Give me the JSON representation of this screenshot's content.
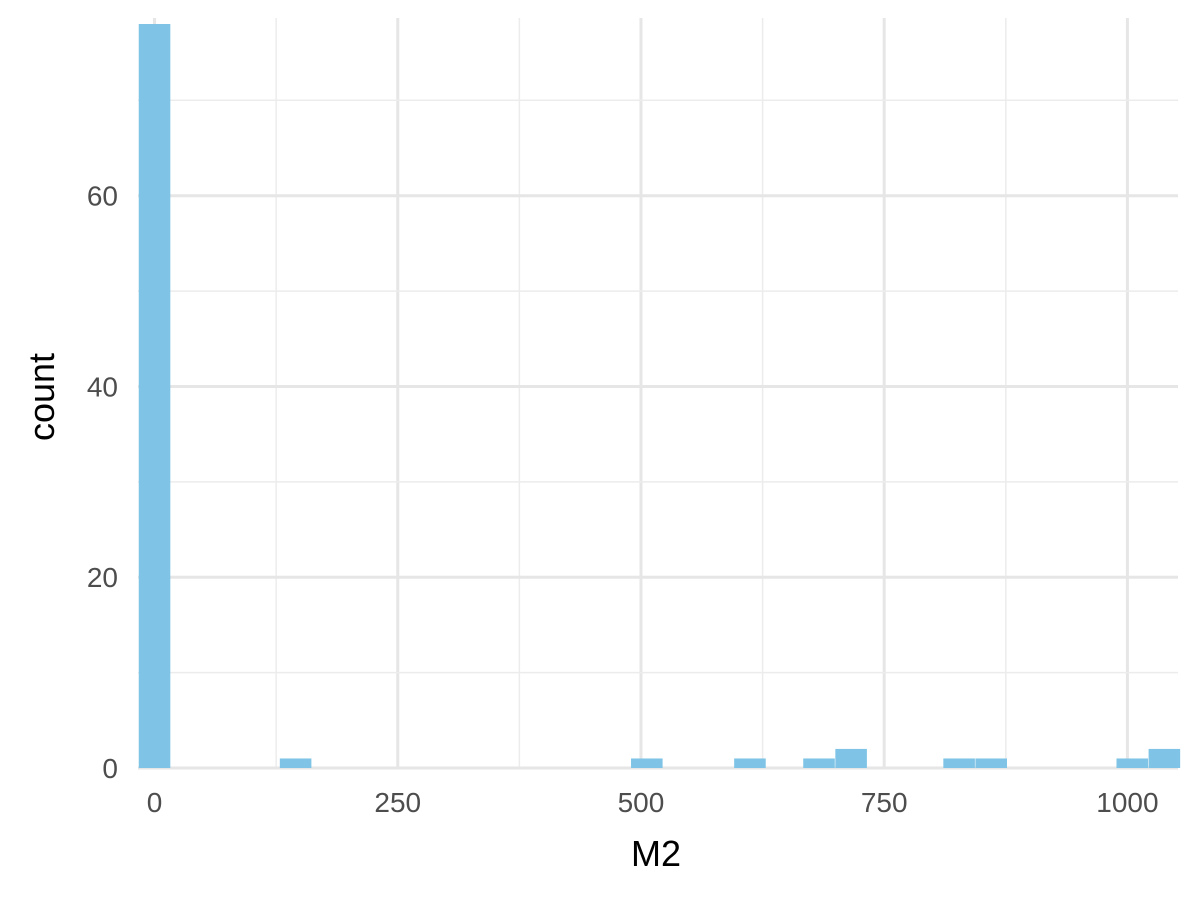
{
  "chart_data": {
    "type": "bar",
    "subtype": "histogram",
    "title": "",
    "xlabel": "M2",
    "ylabel": "count",
    "bar_color": "#7fc4e6",
    "grid": true,
    "legend": "none",
    "bin_width": 34.5,
    "xlim": [
      -17,
      1052
    ],
    "ylim": [
      0,
      78
    ],
    "x_ticks": [
      0,
      250,
      500,
      750,
      1000
    ],
    "x_tick_labels": [
      "0",
      "250",
      "500",
      "750",
      "1000"
    ],
    "y_ticks": [
      0,
      20,
      40,
      60
    ],
    "y_tick_labels": [
      "0",
      "20",
      "40",
      "60"
    ],
    "bins": [
      {
        "center": 0,
        "count": 78
      },
      {
        "center": 145,
        "count": 1
      },
      {
        "center": 506,
        "count": 1
      },
      {
        "center": 612,
        "count": 1
      },
      {
        "center": 683,
        "count": 1
      },
      {
        "center": 716,
        "count": 2
      },
      {
        "center": 827,
        "count": 1
      },
      {
        "center": 860,
        "count": 1
      },
      {
        "center": 1005,
        "count": 1
      },
      {
        "center": 1038,
        "count": 2
      }
    ]
  }
}
